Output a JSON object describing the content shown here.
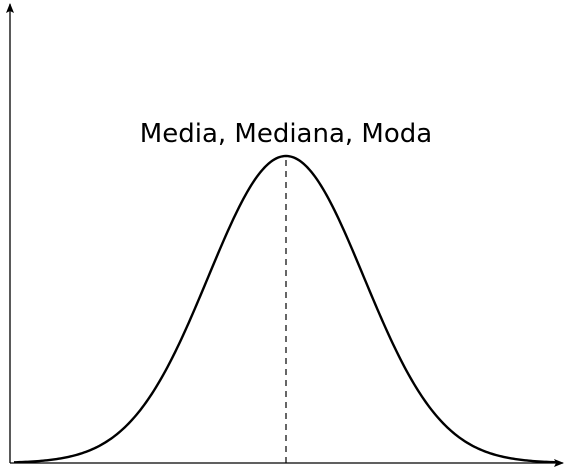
{
  "chart_data": {
    "type": "line",
    "title": "",
    "xlabel": "",
    "ylabel": "",
    "grid": false,
    "legend": "none",
    "curve": "normal-distribution",
    "series": [
      {
        "mean": 0,
        "std": 1,
        "x_range": [
          -3.5,
          3.5
        ]
      }
    ],
    "annotations": [
      {
        "text": "Media, Mediana, Moda",
        "at_x": 0,
        "marker": "dashed-vertical-line"
      }
    ]
  },
  "colors": {
    "stroke": "#000000",
    "background": "#ffffff"
  }
}
